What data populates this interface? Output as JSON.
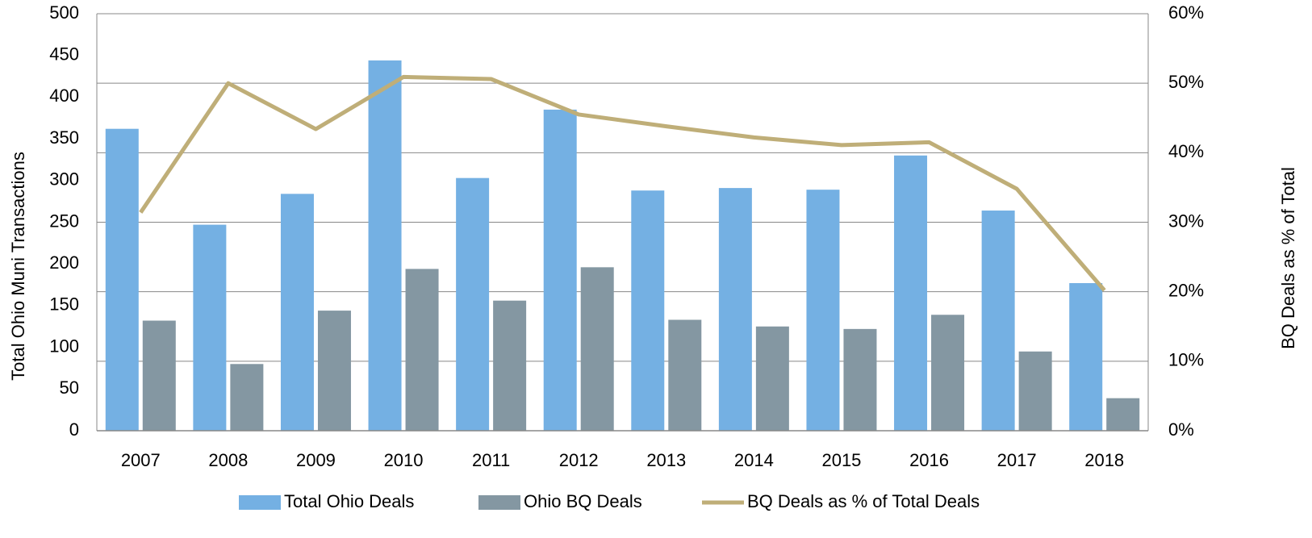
{
  "chart_data": {
    "type": "bar-line",
    "categories": [
      "2007",
      "2008",
      "2009",
      "2010",
      "2011",
      "2012",
      "2013",
      "2014",
      "2015",
      "2016",
      "2017",
      "2018"
    ],
    "series": [
      {
        "name": "Total Ohio Deals",
        "color": "#74b0e3",
        "values": [
          362,
          247,
          284,
          444,
          303,
          385,
          288,
          291,
          289,
          330,
          264,
          177
        ]
      },
      {
        "name": "Ohio BQ Deals",
        "color": "#8497a2",
        "values": [
          132,
          80,
          144,
          194,
          156,
          196,
          133,
          125,
          122,
          139,
          95,
          39
        ]
      },
      {
        "name": "BQ Deals as % of Total Deals",
        "color": "#bfae78",
        "axis": "y2",
        "values": [
          31.4,
          50,
          43.4,
          50.9,
          50.6,
          45.5,
          43.8,
          42.2,
          41.1,
          41.5,
          34.8,
          20.2
        ]
      }
    ],
    "ylabel": "Total Ohio Muni Transactions",
    "y2label": "BQ Deals as % of Total",
    "ylim": [
      0,
      500
    ],
    "yticks": [
      0,
      50,
      100,
      150,
      200,
      250,
      300,
      350,
      400,
      450,
      500
    ],
    "y2lim": [
      0,
      60
    ],
    "y2ticks": [
      {
        "value": 0,
        "label": "0%"
      },
      {
        "value": 10,
        "label": "10%"
      },
      {
        "value": 20,
        "label": "20%"
      },
      {
        "value": 30,
        "label": "30%"
      },
      {
        "value": 40,
        "label": "40%"
      },
      {
        "value": 50,
        "label": "50%"
      },
      {
        "value": 60,
        "label": "60%"
      }
    ],
    "grid": "y2",
    "legend": "bottom"
  }
}
